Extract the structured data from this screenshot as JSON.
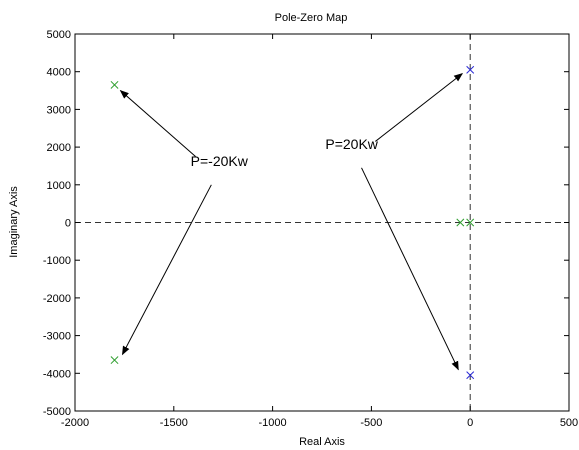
{
  "chart_data": {
    "type": "scatter",
    "title": "Pole-Zero Map",
    "xlabel": "Real Axis",
    "ylabel": "Imaginary Axis",
    "xlim": [
      -2000,
      500
    ],
    "ylim": [
      -5000,
      5000
    ],
    "xticks": [
      -2000,
      -1500,
      -1000,
      -500,
      0,
      500
    ],
    "yticks": [
      -5000,
      -4000,
      -3000,
      -2000,
      -1000,
      0,
      1000,
      2000,
      3000,
      4000,
      5000
    ],
    "xtick_labels": [
      "-2000",
      "-1500",
      "-1000",
      "-500",
      "0",
      "500"
    ],
    "ytick_labels": [
      "-5000",
      "-4000",
      "-3000",
      "-2000",
      "-1000",
      "0",
      "1000",
      "2000",
      "3000",
      "4000",
      "5000"
    ],
    "grid": false,
    "series": [
      {
        "color": "#2e9e2e",
        "marker": "x",
        "points": [
          [
            -1800,
            3650
          ],
          [
            -1800,
            -3650
          ],
          [
            -50,
            0
          ],
          [
            0,
            0
          ]
        ]
      },
      {
        "color": "#2b2bd6",
        "marker": "x",
        "points": [
          [
            0,
            4050
          ],
          [
            0,
            -4050
          ]
        ]
      }
    ],
    "annotations": [
      {
        "text": "P=-20Kw",
        "x": -1270,
        "y": 1500,
        "arrows": [
          {
            "from": [
              -1390,
              1750
            ],
            "to": [
              -1770,
              3500
            ]
          },
          {
            "from": [
              -1310,
              1000
            ],
            "to": [
              -1760,
              -3500
            ]
          }
        ]
      },
      {
        "text": "P=20Kw",
        "x": -600,
        "y": 1950,
        "arrows": [
          {
            "from": [
              -480,
              2150
            ],
            "to": [
              -40,
              3950
            ]
          },
          {
            "from": [
              -550,
              1450
            ],
            "to": [
              -60,
              -3900
            ]
          }
        ]
      }
    ],
    "reference_lines": {
      "x": 0,
      "y": 0,
      "style": "dashed"
    }
  }
}
